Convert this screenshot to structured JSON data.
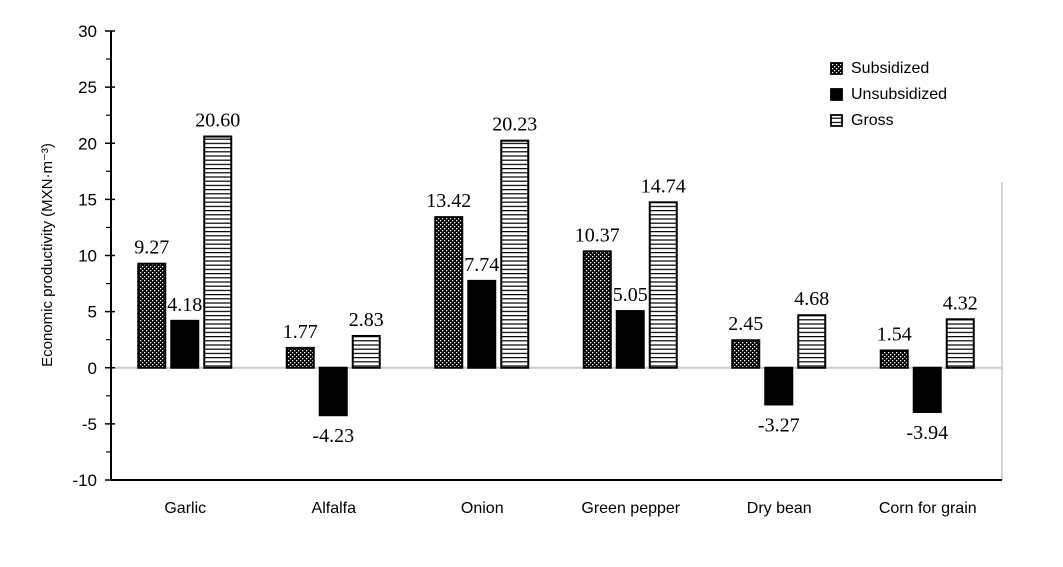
{
  "chart_data": {
    "type": "bar",
    "title": "",
    "xlabel": "",
    "ylabel": "Economic productivity (MXN·m⁻³)",
    "ylim": [
      -10,
      30
    ],
    "yticks": [
      -10,
      -5,
      0,
      5,
      10,
      15,
      20,
      25,
      30
    ],
    "grid": false,
    "legend_placement": "top-right",
    "categories": [
      "Garlic",
      "Alfalfa",
      "Onion",
      "Green pepper",
      "Dry bean",
      "Corn for grain"
    ],
    "series": [
      {
        "name": "Subsidized",
        "pattern": "dotted",
        "values": [
          9.27,
          1.77,
          13.42,
          10.37,
          2.45,
          1.54
        ],
        "labels": [
          "9.27",
          "1.77",
          "13.42",
          "10.37",
          "2.45",
          "1.54"
        ]
      },
      {
        "name": "Unsubsidized",
        "pattern": "solid",
        "values": [
          4.18,
          -4.23,
          7.74,
          5.05,
          -3.27,
          -3.94
        ],
        "labels": [
          "4.18",
          "-4.23",
          "7.74",
          "5.05",
          "-3.27",
          "-3.94"
        ]
      },
      {
        "name": "Gross",
        "pattern": "horizontal-lines",
        "values": [
          20.6,
          2.83,
          20.23,
          14.74,
          4.68,
          4.32
        ],
        "labels": [
          "20.60",
          "2.83",
          "20.23",
          "14.74",
          "4.68",
          "4.32"
        ]
      }
    ],
    "colors": {
      "bars": "#000000",
      "zero_line": "#cccccc",
      "frame": "#bbbbbb"
    }
  }
}
